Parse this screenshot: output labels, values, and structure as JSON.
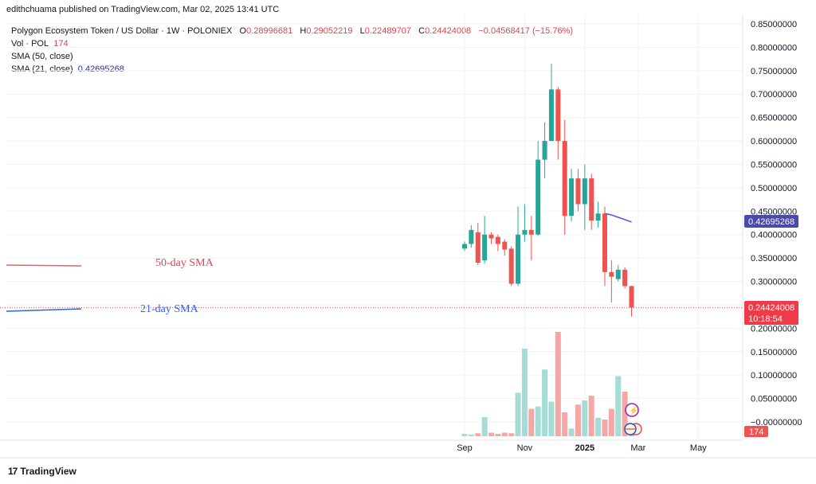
{
  "header": {
    "published": "edithchuama published on TradingView.com, Mar 02, 2025 13:41 UTC"
  },
  "legend": {
    "title": "Polygon Ecosystem Token / US Dollar · 1W · POLONIEX",
    "o_label": "O",
    "o": "0.28996681",
    "h_label": "H",
    "h": "0.29052219",
    "l_label": "L",
    "l": "0.22489707",
    "c_label": "C",
    "c": "0.24424008",
    "change": "−0.04568417 (−15.76%)",
    "vol_label": "Vol · POL",
    "vol_value": "174",
    "sma50_label": "SMA (50, close)",
    "sma21_label": "SMA (21, close)",
    "sma21_value": "0.42695268"
  },
  "annotations": {
    "sma50_text": "50-day SMA",
    "sma21_text": "21-day SMA",
    "sma50_color": "#e0434e",
    "sma21_color": "#2962ff"
  },
  "price_badges": {
    "sma21": "0.42695268",
    "last_price": "0.24424008",
    "countdown": "10:18:54",
    "volume": "174"
  },
  "footer": {
    "brand": "TradingView",
    "logo_icon": "tradingview-logo-icon"
  },
  "colors": {
    "up": "#26a69a",
    "down": "#ef5350",
    "vol_up": "#a6dcd6",
    "vol_down": "#f5a6a5",
    "sma21_line": "#5b5bd6",
    "badge_blue": "#4a4aa8",
    "badge_red": "#ef3b48"
  },
  "chart_data": {
    "type": "candlestick",
    "y_axis": {
      "range": [
        0.0,
        0.85
      ],
      "ticks": [
        "0.85000000",
        "0.80000000",
        "0.75000000",
        "0.70000000",
        "0.65000000",
        "0.60000000",
        "0.55000000",
        "0.50000000",
        "0.45000000",
        "0.40000000",
        "0.35000000",
        "0.30000000",
        "0.25000000",
        "0.20000000",
        "0.15000000",
        "0.10000000",
        "0.05000000",
        "−0.00000000"
      ],
      "tick_values": [
        0.85,
        0.8,
        0.75,
        0.7,
        0.65,
        0.6,
        0.55,
        0.5,
        0.45,
        0.4,
        0.35,
        0.3,
        0.25,
        0.2,
        0.15,
        0.1,
        0.05,
        0.0
      ]
    },
    "x_axis": {
      "labels": [
        {
          "text": "Sep",
          "week": 0
        },
        {
          "text": "Nov",
          "week": 9
        },
        {
          "text": "2025",
          "week": 18
        },
        {
          "text": "Mar",
          "week": 26
        },
        {
          "text": "May",
          "week": 35
        }
      ]
    },
    "candles": [
      {
        "o": 0.37,
        "h": 0.385,
        "l": 0.365,
        "c": 0.38
      },
      {
        "o": 0.38,
        "h": 0.42,
        "l": 0.372,
        "c": 0.41
      },
      {
        "o": 0.405,
        "h": 0.425,
        "l": 0.335,
        "c": 0.34
      },
      {
        "o": 0.345,
        "h": 0.44,
        "l": 0.338,
        "c": 0.4
      },
      {
        "o": 0.4,
        "h": 0.405,
        "l": 0.38,
        "c": 0.392
      },
      {
        "o": 0.395,
        "h": 0.4,
        "l": 0.365,
        "c": 0.38
      },
      {
        "o": 0.385,
        "h": 0.39,
        "l": 0.355,
        "c": 0.368
      },
      {
        "o": 0.37,
        "h": 0.375,
        "l": 0.29,
        "c": 0.295
      },
      {
        "o": 0.295,
        "h": 0.46,
        "l": 0.29,
        "c": 0.4
      },
      {
        "o": 0.4,
        "h": 0.465,
        "l": 0.385,
        "c": 0.41
      },
      {
        "o": 0.41,
        "h": 0.44,
        "l": 0.345,
        "c": 0.4
      },
      {
        "o": 0.4,
        "h": 0.6,
        "l": 0.398,
        "c": 0.56
      },
      {
        "o": 0.56,
        "h": 0.64,
        "l": 0.52,
        "c": 0.6
      },
      {
        "o": 0.6,
        "h": 0.765,
        "l": 0.6,
        "c": 0.71
      },
      {
        "o": 0.71,
        "h": 0.715,
        "l": 0.56,
        "c": 0.6
      },
      {
        "o": 0.6,
        "h": 0.645,
        "l": 0.4,
        "c": 0.44
      },
      {
        "o": 0.44,
        "h": 0.54,
        "l": 0.428,
        "c": 0.52
      },
      {
        "o": 0.52,
        "h": 0.54,
        "l": 0.45,
        "c": 0.465
      },
      {
        "o": 0.465,
        "h": 0.55,
        "l": 0.41,
        "c": 0.52
      },
      {
        "o": 0.52,
        "h": 0.53,
        "l": 0.41,
        "c": 0.43
      },
      {
        "o": 0.43,
        "h": 0.47,
        "l": 0.415,
        "c": 0.445
      },
      {
        "o": 0.445,
        "h": 0.46,
        "l": 0.29,
        "c": 0.32
      },
      {
        "o": 0.32,
        "h": 0.345,
        "l": 0.255,
        "c": 0.31
      },
      {
        "o": 0.305,
        "h": 0.335,
        "l": 0.3,
        "c": 0.325
      },
      {
        "o": 0.325,
        "h": 0.33,
        "l": 0.285,
        "c": 0.29
      },
      {
        "o": 0.29,
        "h": 0.291,
        "l": 0.225,
        "c": 0.244
      }
    ],
    "volume": [
      0.004,
      0.003,
      0.005,
      0.032,
      0.006,
      0.004,
      0.006,
      0.005,
      0.073,
      0.147,
      0.046,
      0.05,
      0.112,
      0.058,
      0.175,
      0.04,
      0.013,
      0.053,
      0.06,
      0.068,
      0.031,
      0.028,
      0.046,
      0.101,
      0.075,
      0.012
    ],
    "sma21": [
      {
        "week": 21,
        "v": 0.445
      },
      {
        "week": 22,
        "v": 0.442
      },
      {
        "week": 23,
        "v": 0.437
      },
      {
        "week": 24,
        "v": 0.432
      },
      {
        "week": 25,
        "v": 0.427
      }
    ],
    "last_price": 0.24424008
  }
}
